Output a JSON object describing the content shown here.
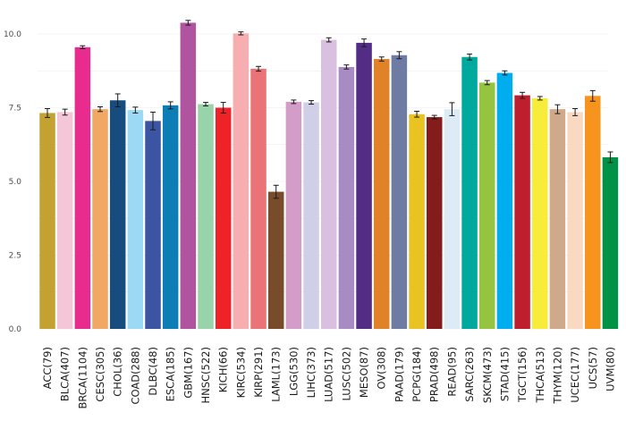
{
  "chart_data": {
    "type": "bar",
    "title": "",
    "xlabel": "",
    "ylabel": "",
    "ylim": [
      0,
      11
    ],
    "yticks": [
      0,
      2.5,
      5,
      7.5,
      10
    ],
    "ytick_labels": [
      "0.0",
      "2.5",
      "5.0",
      "7.5",
      "10.0"
    ],
    "grid": true,
    "legend": "none",
    "categories": [
      "ACC(79)",
      "BLCA(407)",
      "BRCA(1104)",
      "CESC(305)",
      "CHOL(36)",
      "COAD(288)",
      "DLBC(48)",
      "ESCA(185)",
      "GBM(167)",
      "HNSC(522)",
      "KICH(66)",
      "KIRC(534)",
      "KIRP(291)",
      "LAML(173)",
      "LGG(530)",
      "LIHC(373)",
      "LUAD(517)",
      "LUSC(502)",
      "MESO(87)",
      "OV(308)",
      "PAAD(179)",
      "PCPG(184)",
      "PRAD(498)",
      "READ(95)",
      "SARC(263)",
      "SKCM(473)",
      "STAD(415)",
      "TGCT(156)",
      "THCA(513)",
      "THYM(120)",
      "UCEC(177)",
      "UCS(57)",
      "UVM(80)"
    ],
    "values": [
      7.32,
      7.35,
      9.55,
      7.45,
      7.75,
      7.42,
      7.05,
      7.58,
      10.38,
      7.62,
      7.5,
      10.02,
      8.82,
      4.65,
      7.7,
      7.68,
      9.8,
      8.88,
      9.7,
      9.15,
      9.28,
      7.28,
      7.18,
      7.45,
      9.22,
      8.35,
      8.68,
      7.92,
      7.82,
      7.45,
      7.35,
      7.9,
      5.82
    ],
    "errors": [
      0.15,
      0.1,
      0.05,
      0.08,
      0.22,
      0.1,
      0.3,
      0.12,
      0.08,
      0.06,
      0.18,
      0.05,
      0.08,
      0.22,
      0.06,
      0.06,
      0.07,
      0.07,
      0.13,
      0.07,
      0.12,
      0.1,
      0.06,
      0.22,
      0.1,
      0.07,
      0.07,
      0.1,
      0.06,
      0.15,
      0.12,
      0.18,
      0.18
    ],
    "colors": [
      "#C4A232",
      "#F4C6D8",
      "#E92A8E",
      "#F0A864",
      "#164C7E",
      "#9CD9F5",
      "#3B55A3",
      "#0D7DB5",
      "#B0549F",
      "#99D3A9",
      "#ED2328",
      "#F7AEB0",
      "#EA7377",
      "#784B2A",
      "#D49CC8",
      "#CFCFE7",
      "#D9C0E0",
      "#A98BC3",
      "#532C85",
      "#E18128",
      "#6E7BA2",
      "#E8C321",
      "#841C1B",
      "#DCEBF6",
      "#00A99D",
      "#94C440",
      "#00AEEF",
      "#BE1E2D",
      "#F8EC3B",
      "#CEA98C",
      "#FAD9C2",
      "#F7941D",
      "#009247"
    ]
  }
}
